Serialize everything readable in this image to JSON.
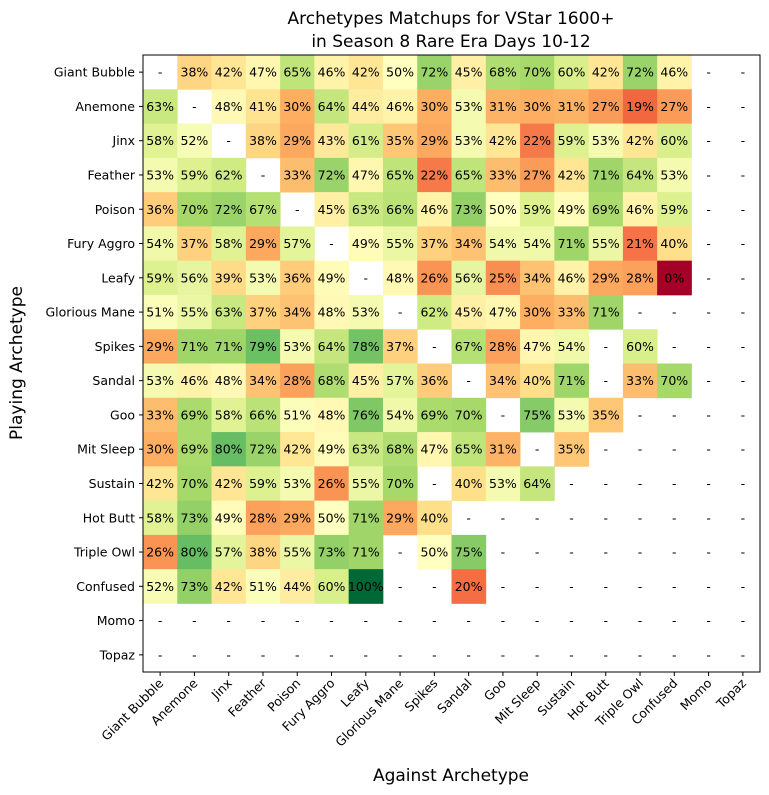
{
  "chart_data": {
    "type": "heatmap",
    "title": "Archetypes Matchups for VStar 1600+",
    "subtitle": "in Season 8 Rare Era Days 10-12",
    "xlabel": "Against Archetype",
    "ylabel": "Playing Archetype",
    "color_scale": "RdYlGn",
    "value_range": [
      0,
      100
    ],
    "rows": [
      "Giant Bubble",
      "Anemone",
      "Jinx",
      "Feather",
      "Poison",
      "Fury Aggro",
      "Leafy",
      "Glorious Mane",
      "Spikes",
      "Sandal",
      "Goo",
      "Mit Sleep",
      "Sustain",
      "Hot Butt",
      "Triple Owl",
      "Confused",
      "Momo",
      "Topaz"
    ],
    "columns": [
      "Giant Bubble",
      "Anemone",
      "Jinx",
      "Feather",
      "Poison",
      "Fury Aggro",
      "Leafy",
      "Glorious Mane",
      "Spikes",
      "Sandal",
      "Goo",
      "Mit Sleep",
      "Sustain",
      "Hot Butt",
      "Triple Owl",
      "Confused",
      "Momo",
      "Topaz"
    ],
    "values": [
      [
        null,
        38,
        42,
        47,
        65,
        46,
        42,
        50,
        72,
        45,
        68,
        70,
        60,
        42,
        72,
        46,
        null,
        null
      ],
      [
        63,
        null,
        48,
        41,
        30,
        64,
        44,
        46,
        30,
        53,
        31,
        30,
        31,
        27,
        19,
        27,
        null,
        null
      ],
      [
        58,
        52,
        null,
        38,
        29,
        43,
        61,
        35,
        29,
        53,
        42,
        22,
        59,
        53,
        42,
        60,
        null,
        null
      ],
      [
        53,
        59,
        62,
        null,
        33,
        72,
        47,
        65,
        22,
        65,
        33,
        27,
        42,
        71,
        64,
        53,
        null,
        null
      ],
      [
        36,
        70,
        72,
        67,
        null,
        45,
        63,
        66,
        46,
        73,
        50,
        59,
        49,
        69,
        46,
        59,
        null,
        null
      ],
      [
        54,
        37,
        58,
        29,
        57,
        null,
        49,
        55,
        37,
        34,
        54,
        54,
        71,
        55,
        21,
        40,
        null,
        null
      ],
      [
        59,
        56,
        39,
        53,
        36,
        49,
        null,
        48,
        26,
        56,
        25,
        34,
        46,
        29,
        28,
        0,
        null,
        null
      ],
      [
        51,
        55,
        63,
        37,
        34,
        48,
        53,
        null,
        62,
        45,
        47,
        30,
        33,
        71,
        null,
        null,
        null,
        null
      ],
      [
        29,
        71,
        71,
        79,
        53,
        64,
        78,
        37,
        null,
        67,
        28,
        47,
        54,
        null,
        60,
        null,
        null,
        null
      ],
      [
        53,
        46,
        48,
        34,
        28,
        68,
        45,
        57,
        36,
        null,
        34,
        40,
        71,
        null,
        33,
        70,
        null,
        null
      ],
      [
        33,
        69,
        58,
        66,
        51,
        48,
        76,
        54,
        69,
        70,
        null,
        75,
        53,
        35,
        null,
        null,
        null,
        null
      ],
      [
        30,
        69,
        80,
        72,
        42,
        49,
        63,
        68,
        47,
        65,
        31,
        null,
        35,
        null,
        null,
        null,
        null,
        null
      ],
      [
        42,
        70,
        42,
        59,
        53,
        26,
        55,
        70,
        null,
        40,
        53,
        64,
        null,
        null,
        null,
        null,
        null,
        null
      ],
      [
        58,
        73,
        49,
        28,
        29,
        50,
        71,
        29,
        40,
        null,
        null,
        null,
        null,
        null,
        null,
        null,
        null,
        null
      ],
      [
        26,
        80,
        57,
        38,
        55,
        73,
        71,
        null,
        50,
        75,
        null,
        null,
        null,
        null,
        null,
        null,
        null,
        null
      ],
      [
        52,
        73,
        42,
        51,
        44,
        60,
        100,
        null,
        null,
        20,
        null,
        null,
        null,
        null,
        null,
        null,
        null,
        null
      ],
      [
        null,
        null,
        null,
        null,
        null,
        null,
        null,
        null,
        null,
        null,
        null,
        null,
        null,
        null,
        null,
        null,
        null,
        null
      ],
      [
        null,
        null,
        null,
        null,
        null,
        null,
        null,
        null,
        null,
        null,
        null,
        null,
        null,
        null,
        null,
        null,
        null,
        null
      ]
    ],
    "missing_label": "-",
    "value_suffix": "%"
  }
}
